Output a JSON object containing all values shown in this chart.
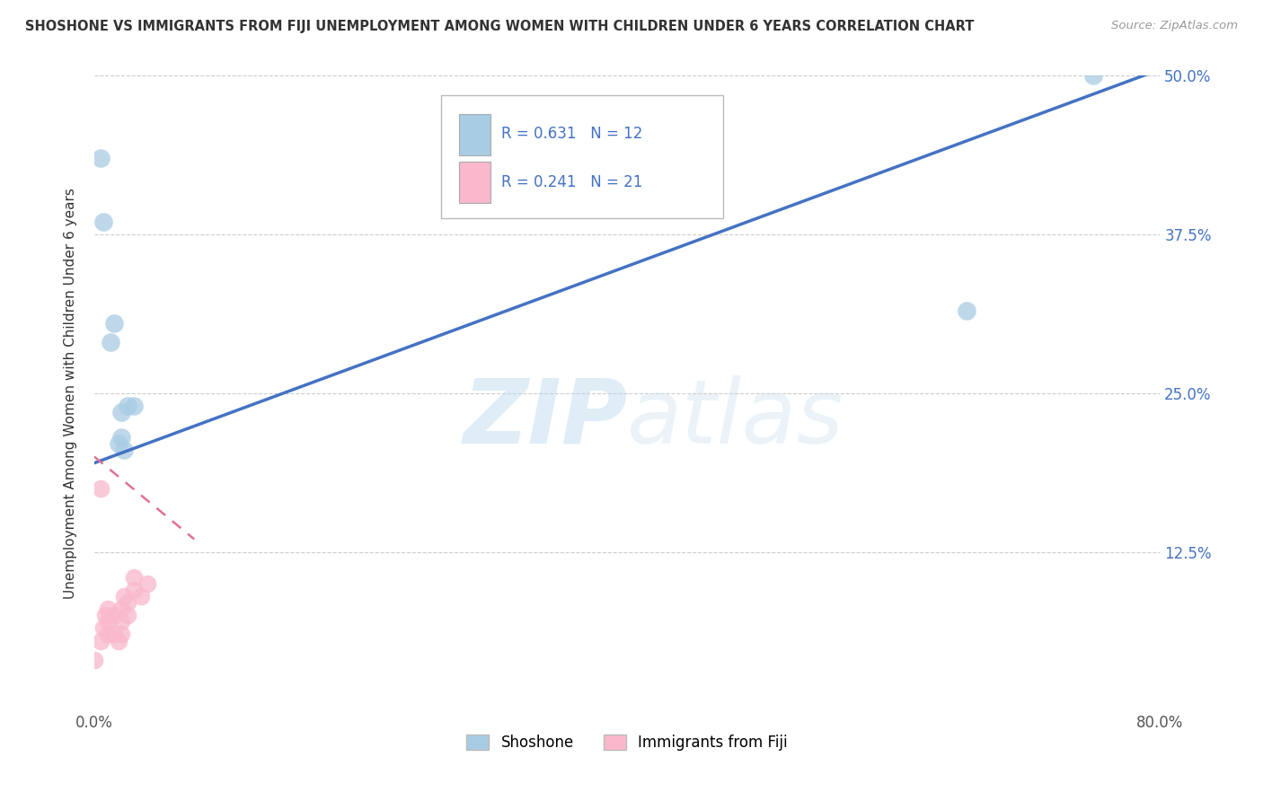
{
  "title": "SHOSHONE VS IMMIGRANTS FROM FIJI UNEMPLOYMENT AMONG WOMEN WITH CHILDREN UNDER 6 YEARS CORRELATION CHART",
  "source": "Source: ZipAtlas.com",
  "ylabel": "Unemployment Among Women with Children Under 6 years",
  "xlim": [
    0,
    0.8
  ],
  "ylim": [
    0,
    0.5
  ],
  "xticks": [
    0.0,
    0.1,
    0.2,
    0.3,
    0.4,
    0.5,
    0.6,
    0.7,
    0.8
  ],
  "ytick_positions": [
    0.0,
    0.125,
    0.25,
    0.375,
    0.5
  ],
  "yticklabels_right": [
    "",
    "12.5%",
    "25.0%",
    "37.5%",
    "50.0%"
  ],
  "shoshone_x": [
    0.005,
    0.007,
    0.012,
    0.015,
    0.02,
    0.02,
    0.025,
    0.03,
    0.655,
    0.75,
    0.018,
    0.022
  ],
  "shoshone_y": [
    0.435,
    0.385,
    0.29,
    0.305,
    0.235,
    0.215,
    0.24,
    0.24,
    0.315,
    0.5,
    0.21,
    0.205
  ],
  "fiji_x": [
    0.0,
    0.005,
    0.007,
    0.008,
    0.01,
    0.01,
    0.01,
    0.015,
    0.015,
    0.018,
    0.02,
    0.02,
    0.02,
    0.022,
    0.025,
    0.025,
    0.03,
    0.03,
    0.035,
    0.04,
    0.005
  ],
  "fiji_y": [
    0.04,
    0.055,
    0.065,
    0.075,
    0.06,
    0.07,
    0.08,
    0.06,
    0.075,
    0.055,
    0.06,
    0.07,
    0.08,
    0.09,
    0.075,
    0.085,
    0.095,
    0.105,
    0.09,
    0.1,
    0.175
  ],
  "shoshone_line_x": [
    0.0,
    0.8
  ],
  "shoshone_line_y": [
    0.195,
    0.505
  ],
  "fiji_line_x": [
    0.0,
    0.075
  ],
  "fiji_line_y": [
    0.2,
    0.135
  ],
  "shoshone_R": 0.631,
  "shoshone_N": 12,
  "fiji_R": 0.241,
  "fiji_N": 21,
  "shoshone_dot_color": "#a8cce4",
  "fiji_dot_color": "#f9b8cb",
  "shoshone_line_color": "#4472c4",
  "fiji_line_color": "#e07090",
  "legend_label_shoshone": "Shoshone",
  "legend_label_fiji": "Immigrants from Fiji",
  "watermark_zip": "ZIP",
  "watermark_atlas": "atlas",
  "background_color": "#ffffff",
  "grid_color": "#cccccc",
  "title_color": "#333333",
  "source_color": "#999999",
  "tick_color": "#4472c4"
}
